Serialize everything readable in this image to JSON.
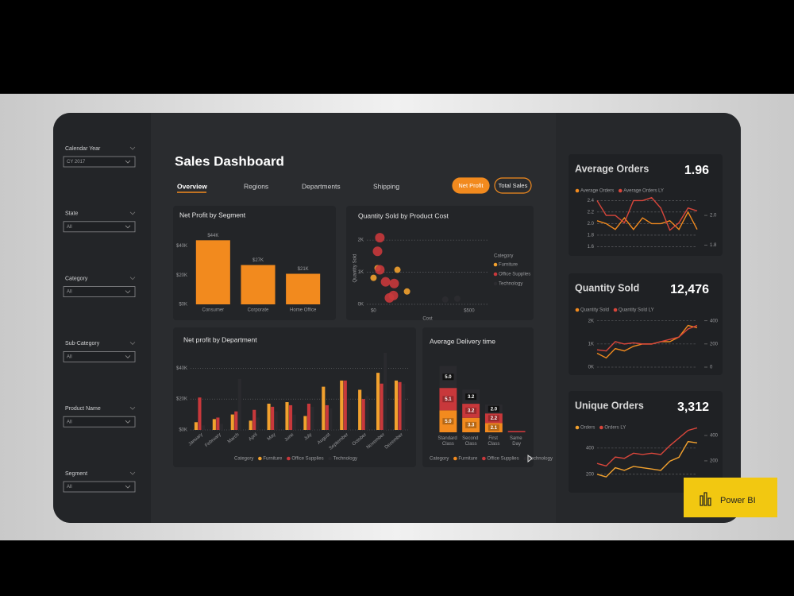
{
  "slicers": [
    {
      "label": "Calendar Year",
      "value": "CY 2017"
    },
    {
      "label": "State",
      "value": "All"
    },
    {
      "label": "Category",
      "value": "All"
    },
    {
      "label": "Sub-Category",
      "value": "All"
    },
    {
      "label": "Product Name",
      "value": "All"
    },
    {
      "label": "Segment",
      "value": "All"
    }
  ],
  "title": "Sales Dashboard",
  "tabs": [
    "Overview",
    "Regions",
    "Departments",
    "Shipping"
  ],
  "buttons": [
    "Net Profit",
    "Total Sales"
  ],
  "badge": "Power BI",
  "chart_data": [
    {
      "type": "bar",
      "title": "Net Profit by Segment",
      "categories": [
        "Consumer",
        "Corporate",
        "Home Office"
      ],
      "values": [
        44000,
        27000,
        21000
      ],
      "value_labels": [
        "$44K",
        "$27K",
        "$21K"
      ],
      "color": "#f28a1e",
      "ylim": [
        0,
        48000
      ],
      "yticks": [
        {
          "value": 0,
          "label": "$0K"
        },
        {
          "value": 20000,
          "label": "$20K"
        },
        {
          "value": 40000,
          "label": "$40K"
        }
      ],
      "grid": false
    },
    {
      "type": "scatter",
      "title": "Quantity Sold by Product Cost",
      "x_label": "Cost",
      "y_label": "Quantity Sold",
      "legend_title": "Category",
      "series": [
        {
          "name": "Furniture",
          "color": "#f2a12e",
          "x": [
            21,
            0,
            125,
            175
          ],
          "y": [
            1125,
            825,
            1075,
            400
          ]
        },
        {
          "name": "Office Supplies",
          "color": "#c8383b",
          "x": [
            33,
            21,
            33,
            63,
            108,
            83,
            104
          ],
          "y": [
            2075,
            1650,
            1075,
            700,
            650,
            200,
            275
          ]
        },
        {
          "name": "Technology",
          "color": "#2c2c30",
          "x": [
            375,
            438
          ],
          "y": [
            150,
            175
          ]
        }
      ],
      "xlim": [
        -35,
        600
      ],
      "ylim": [
        -50,
        2300
      ],
      "xticks": [
        {
          "value": 0,
          "label": "$0"
        },
        {
          "value": 500,
          "label": "$500"
        }
      ],
      "yticks": [
        {
          "value": 0,
          "label": "0K"
        },
        {
          "value": 1000,
          "label": "1K"
        },
        {
          "value": 2000,
          "label": "2K"
        }
      ],
      "grid": true
    },
    {
      "type": "grouped_bar",
      "title": "Net profit by Department",
      "legend_title": "Category",
      "categories": [
        "January",
        "February",
        "March",
        "April",
        "May",
        "June",
        "July",
        "August",
        "September",
        "October",
        "November",
        "December"
      ],
      "series": [
        {
          "name": "Furniture",
          "color": "#f2a12e",
          "values": [
            5000,
            7000,
            10000,
            6000,
            17000,
            18000,
            9000,
            28000,
            32000,
            26000,
            37000,
            32000
          ]
        },
        {
          "name": "Office Supplies",
          "color": "#c8383b",
          "values": [
            21000,
            8000,
            12000,
            13000,
            15000,
            16000,
            17000,
            16000,
            32000,
            20000,
            30000,
            31000
          ]
        },
        {
          "name": "Technology",
          "color": "#2a2a2e",
          "values": [
            3000,
            4000,
            33000,
            8000,
            12000,
            10000,
            15000,
            14000,
            20000,
            22000,
            50000,
            30000
          ]
        }
      ],
      "ylim": [
        0,
        52000
      ],
      "yticks": [
        {
          "value": 0,
          "label": "$0K"
        },
        {
          "value": 20000,
          "label": "$20K"
        },
        {
          "value": 40000,
          "label": "$40K"
        }
      ],
      "grid": true
    },
    {
      "type": "stacked_bar",
      "title": "Average Delivery time",
      "legend_title": "Category",
      "categories": [
        "Standard Class",
        "Second Class",
        "First Class",
        "Same Day"
      ],
      "series": [
        {
          "name": "Furniture",
          "color": "#f28a1e",
          "values": [
            5,
            3.3,
            2.1,
            0
          ],
          "value_labels": [
            "5.0",
            "3.3",
            "2.1",
            null
          ]
        },
        {
          "name": "Office Supplies",
          "color": "#c8383b",
          "values": [
            5.1,
            3.2,
            2.2,
            0.3
          ],
          "value_labels": [
            "5.1",
            "3.2",
            "2.2",
            null
          ]
        },
        {
          "name": "Technology",
          "color": "#2a2a2e",
          "values": [
            5,
            3.2,
            2,
            0
          ],
          "value_labels": [
            "5.0",
            "3.2",
            "2.0",
            null
          ]
        }
      ],
      "ylim": [
        0,
        17
      ]
    },
    {
      "type": "line",
      "title": "Average Orders",
      "kpi": "1.96",
      "series": [
        {
          "name": "Average Orders",
          "color": "#f28a1e",
          "values": [
            2.05,
            2.0,
            1.9,
            2.1,
            1.9,
            2.1,
            2.0,
            2.0,
            2.05,
            1.9,
            2.2,
            1.9
          ]
        },
        {
          "name": "Average Orders LY",
          "color": "#d9463b",
          "axis": "y2",
          "values": [
            2.1,
            2.0,
            2.0,
            1.95,
            2.1,
            2.1,
            2.12,
            2.05,
            1.9,
            1.95,
            2.05,
            2.03
          ]
        }
      ],
      "ylim": [
        1.58,
        2.5
      ],
      "yticks": [
        {
          "value": 1.6,
          "label": "1.6"
        },
        {
          "value": 1.8,
          "label": "1.8"
        },
        {
          "value": 2,
          "label": "2.0"
        },
        {
          "value": 2.2,
          "label": "2.2"
        },
        {
          "value": 2.4,
          "label": "2.4"
        }
      ],
      "y2lim": [
        1.78,
        2.14
      ],
      "y2ticks": [
        {
          "value": 1.8,
          "label": "1.8"
        },
        {
          "value": 2,
          "label": "2.0"
        }
      ],
      "grid": true
    },
    {
      "type": "line",
      "title": "Quantity Sold",
      "kpi": "12,476",
      "series": [
        {
          "name": "Quantity Sold",
          "color": "#f28a1e",
          "values": [
            600,
            400,
            800,
            700,
            900,
            1000,
            1000,
            1100,
            1100,
            1300,
            1800,
            1700
          ]
        },
        {
          "name": "Quantity Sold LY",
          "color": "#d9463b",
          "axis": "y2",
          "values": [
            150,
            140,
            220,
            200,
            210,
            200,
            200,
            220,
            240,
            260,
            330,
            360
          ]
        }
      ],
      "ylim": [
        0,
        2300
      ],
      "yticks": [
        {
          "value": 0,
          "label": "0K"
        },
        {
          "value": 1000,
          "label": "1K"
        },
        {
          "value": 2000,
          "label": "2K"
        }
      ],
      "y2lim": [
        0,
        460
      ],
      "y2ticks": [
        0,
        200,
        400
      ],
      "grid": true
    },
    {
      "type": "line",
      "title": "Unique Orders",
      "kpi": "3,312",
      "series": [
        {
          "name": "Orders",
          "color": "#f2a12e",
          "values": [
            200,
            180,
            250,
            230,
            260,
            250,
            240,
            230,
            300,
            330,
            450,
            440
          ]
        },
        {
          "name": "Orders LY",
          "color": "#d9463b",
          "axis": "y2",
          "values": [
            180,
            160,
            230,
            220,
            260,
            250,
            260,
            250,
            320,
            380,
            440,
            460
          ]
        }
      ],
      "ylim": [
        120,
        545
      ],
      "yticks": [
        200,
        400
      ],
      "y2lim": [
        12,
        450
      ],
      "y2ticks": [
        200,
        400
      ],
      "grid": true
    }
  ]
}
